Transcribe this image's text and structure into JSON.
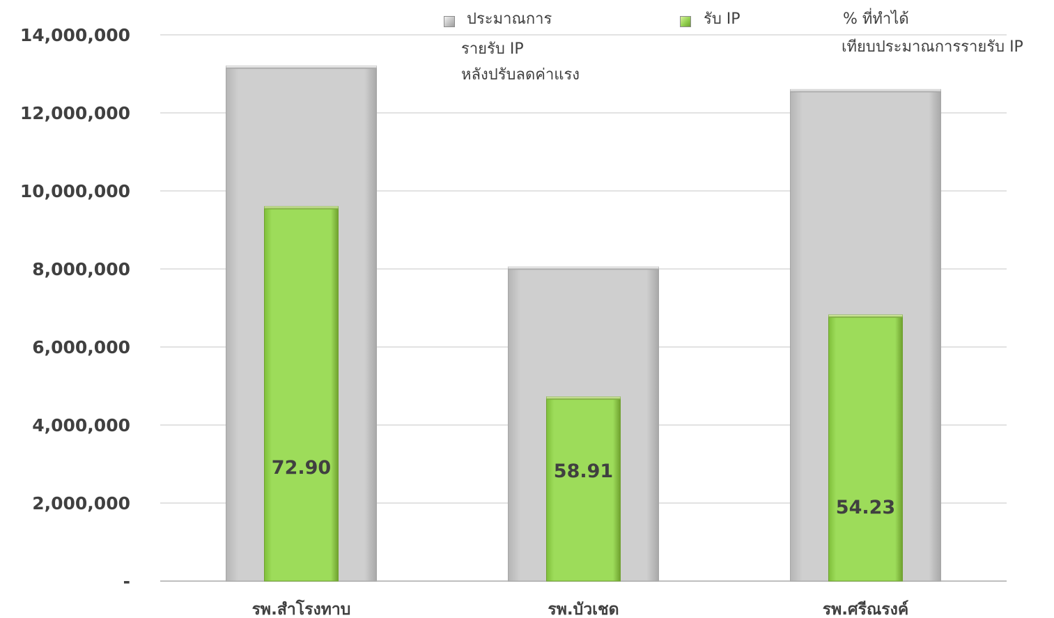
{
  "chart_data": {
    "type": "bar",
    "categories": [
      "รพ.สำโรงทาบ",
      "รพ.บัวเชด",
      "รพ.ศรีณรงค์"
    ],
    "series": [
      {
        "name": "ประมาณการรายรับ IP หลังปรับลดค่าแรง",
        "values": [
          13200000,
          8050000,
          12600000
        ],
        "color": "#c8c8c8"
      },
      {
        "name": "รับ IP",
        "values": [
          9600000,
          4720000,
          6820000
        ],
        "color": "#92d050"
      }
    ],
    "percent_series": {
      "name": "% ที่ทำได้ เทียบประมาณการรายรับ IP",
      "labels": [
        "72.90",
        "58.91",
        "54.23"
      ]
    },
    "y_ticks": [
      "-",
      "2,000,000",
      "4,000,000",
      "6,000,000",
      "8,000,000",
      "10,000,000",
      "12,000,000",
      "14,000,000"
    ],
    "ylim": [
      0,
      14000000
    ],
    "grid": true,
    "legend_position": "top",
    "title": "",
    "xlabel": "",
    "ylabel": ""
  },
  "legend": {
    "item1_lines": [
      "ประมาณการ",
      "รายรับ IP",
      "หลังปรับลดค่าแรง"
    ],
    "item2_lines": [
      "รับ IP"
    ],
    "item3_lines": [
      "% ที่ทำได้",
      "เทียบประมาณการรายรับ IP"
    ]
  }
}
